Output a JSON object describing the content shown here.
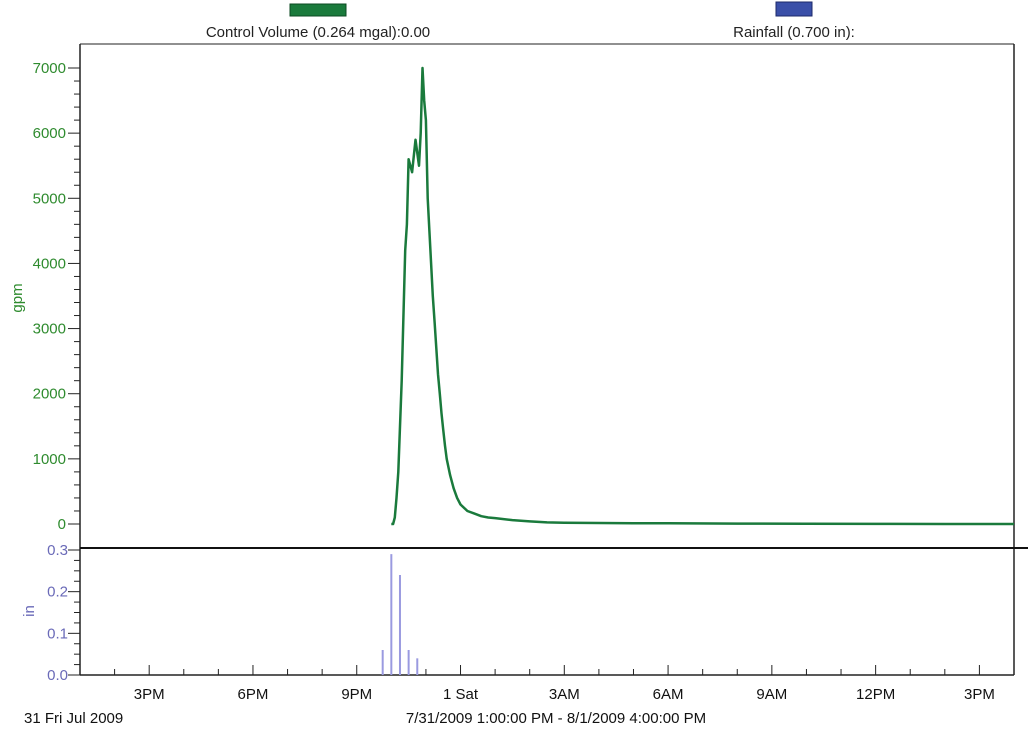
{
  "legend": [
    {
      "name": "Control Volume (0.264 mgal):0.00",
      "color": "#1a7a3c"
    },
    {
      "name": "Rainfall (0.700 in):",
      "color": "#3a4fa8"
    }
  ],
  "footer": {
    "start_label": "31 Fri Jul 2009",
    "range_label": "7/31/2009 1:00:00 PM - 8/1/2009 4:00:00 PM"
  },
  "chart_data": [
    {
      "type": "line",
      "ylabel": "gpm",
      "ylim": [
        0,
        7000
      ],
      "yticks": [
        0,
        1000,
        2000,
        3000,
        4000,
        5000,
        6000,
        7000
      ],
      "x_unit": "hours after 7/31/2009 12:00 PM",
      "series": [
        {
          "name": "Control Volume (0.264 mgal):0.00",
          "color": "#1a7a3c",
          "x": [
            10.0,
            10.05,
            10.1,
            10.15,
            10.2,
            10.3,
            10.4,
            10.45,
            10.5,
            10.6,
            10.7,
            10.8,
            10.85,
            10.9,
            10.95,
            11.0,
            11.05,
            11.1,
            11.15,
            11.2,
            11.25,
            11.3,
            11.35,
            11.4,
            11.45,
            11.5,
            11.55,
            11.6,
            11.7,
            11.8,
            11.9,
            12.0,
            12.2,
            12.4,
            12.6,
            12.8,
            13.0,
            13.5,
            14.0,
            14.5,
            15.0,
            16.0,
            17.0,
            18.0,
            20.0,
            22.0,
            24.0,
            26.0,
            28.0
          ],
          "y": [
            0,
            0,
            100,
            400,
            800,
            2200,
            4200,
            4600,
            5600,
            5400,
            5900,
            5500,
            6000,
            7000,
            6500,
            6200,
            5000,
            4500,
            4000,
            3500,
            3100,
            2700,
            2300,
            2000,
            1700,
            1450,
            1200,
            1000,
            750,
            550,
            400,
            300,
            200,
            160,
            120,
            100,
            90,
            60,
            40,
            25,
            20,
            15,
            12,
            10,
            6,
            4,
            2,
            0,
            0
          ]
        }
      ]
    },
    {
      "type": "bar",
      "ylabel": "in",
      "ylim": [
        0,
        0.3
      ],
      "yticks": [
        0.0,
        0.1,
        0.2,
        0.3
      ],
      "x_unit": "hours after 7/31/2009 12:00 PM",
      "series": [
        {
          "name": "Rainfall (0.700 in):",
          "color": "#9a9ae0",
          "x": [
            9.75,
            10.0,
            10.25,
            10.5,
            10.75
          ],
          "values": [
            0.06,
            0.29,
            0.24,
            0.06,
            0.04
          ]
        }
      ]
    }
  ],
  "x_axis": {
    "tick_hours": [
      3,
      6,
      9,
      12,
      15,
      18,
      21,
      24,
      27
    ],
    "tick_labels": [
      "3PM",
      "6PM",
      "9PM",
      "1 Sat",
      "3AM",
      "6AM",
      "9AM",
      "12PM",
      "3PM"
    ],
    "range_hours": [
      1,
      28
    ]
  }
}
